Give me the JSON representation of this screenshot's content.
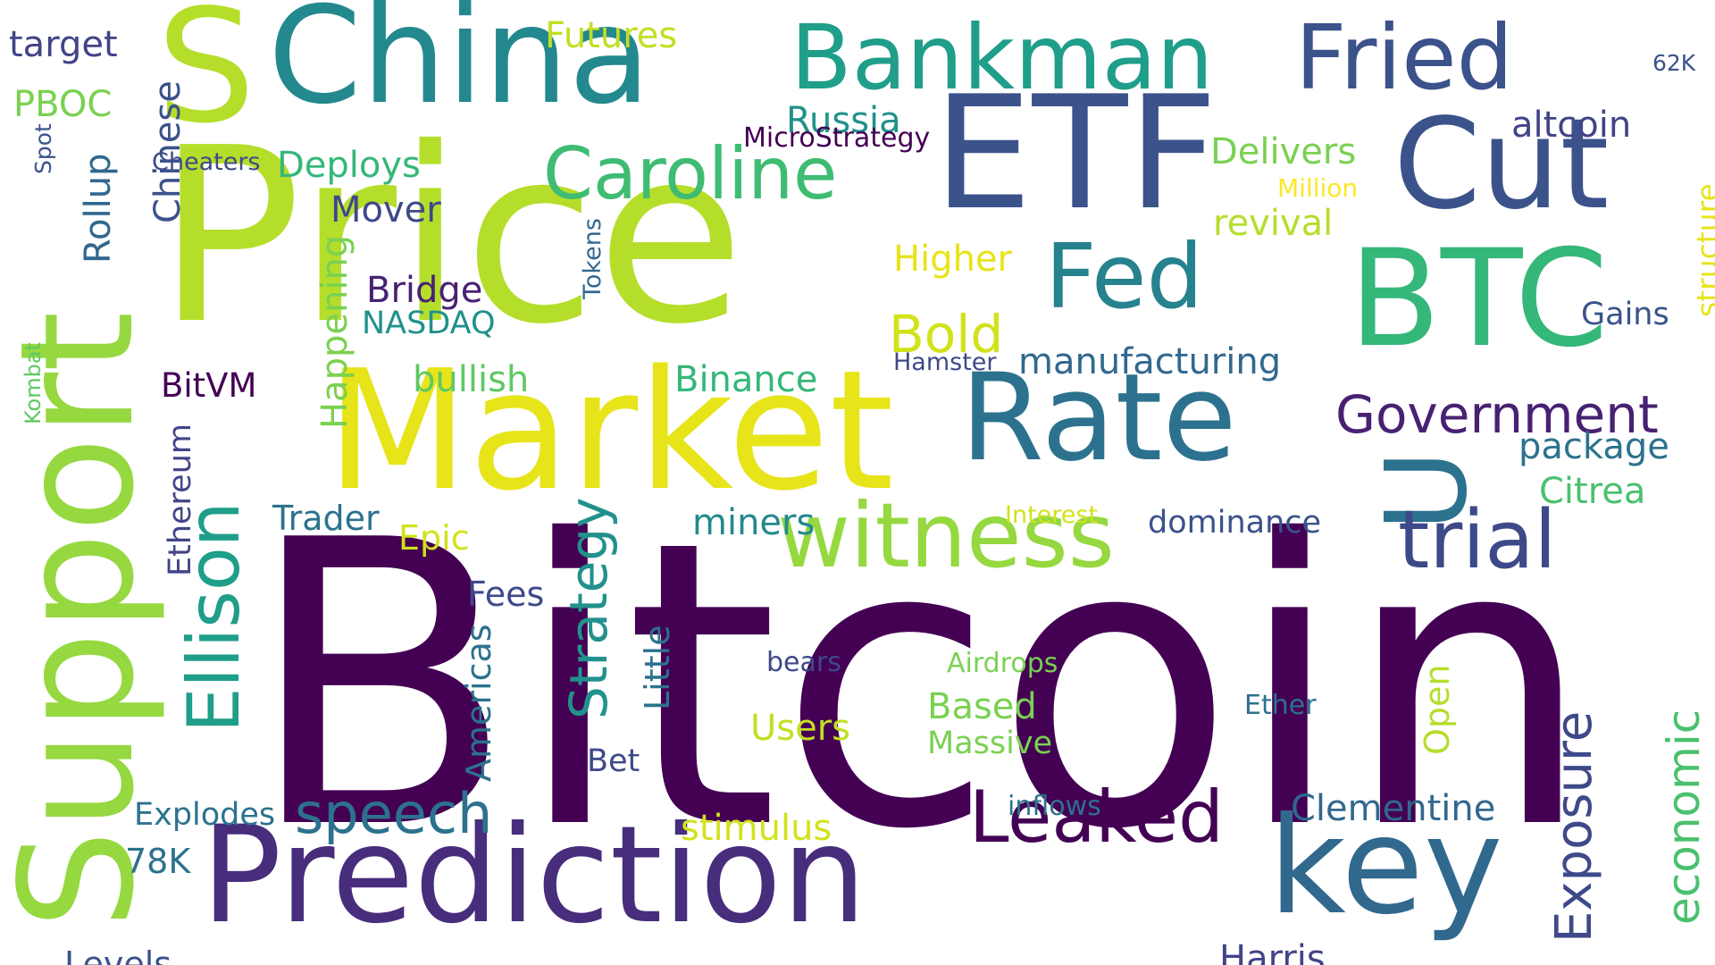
{
  "words": [
    {
      "text": "Bitcoin",
      "color": "#440154"
    },
    {
      "text": "Price",
      "color": "#b5de2b"
    },
    {
      "text": "Market",
      "color": "#e7e419"
    },
    {
      "text": "Prediction",
      "color": "#472d7b"
    },
    {
      "text": "China",
      "color": "#23898e"
    },
    {
      "text": "ETF",
      "color": "#3b528b"
    },
    {
      "text": "Support",
      "color": "#95d840"
    },
    {
      "text": "S",
      "color": "#b5de2b"
    },
    {
      "text": "BTC",
      "color": "#35b779"
    },
    {
      "text": "Rate",
      "color": "#2c728e"
    },
    {
      "text": "Cut",
      "color": "#3b528b"
    },
    {
      "text": "key",
      "color": "#31688e"
    },
    {
      "text": "U",
      "color": "#2c728e"
    },
    {
      "text": "Fried",
      "color": "#3b528b"
    },
    {
      "text": "Bankman",
      "color": "#1f9e89"
    },
    {
      "text": "witness",
      "color": "#95d840"
    },
    {
      "text": "trial",
      "color": "#3e4989"
    },
    {
      "text": "Fed",
      "color": "#26828e"
    },
    {
      "text": "Caroline",
      "color": "#3fbc73"
    },
    {
      "text": "Leaked",
      "color": "#440154"
    },
    {
      "text": "Ellison",
      "color": "#1f9e89"
    },
    {
      "text": "speech",
      "color": "#2c728e"
    },
    {
      "text": "Government",
      "color": "#482173"
    },
    {
      "text": "Strategy",
      "color": "#21918c"
    },
    {
      "text": "Exposure",
      "color": "#3e4989"
    },
    {
      "text": "economic",
      "color": "#4ac16d"
    },
    {
      "text": "Bold",
      "color": "#d2e21b"
    },
    {
      "text": "manufacturing",
      "color": "#31688e"
    },
    {
      "text": "Clementine",
      "color": "#31688e"
    },
    {
      "text": "Higher",
      "color": "#e7e419"
    },
    {
      "text": "package",
      "color": "#2c728e"
    },
    {
      "text": "Citrea",
      "color": "#4ac16d"
    },
    {
      "text": "structure",
      "color": "#e7e419"
    },
    {
      "text": "Binance",
      "color": "#35b779"
    },
    {
      "text": "Bridge",
      "color": "#482173"
    },
    {
      "text": "bullish",
      "color": "#5ec962"
    },
    {
      "text": "Deploys",
      "color": "#35b779"
    },
    {
      "text": "Russia",
      "color": "#21918c"
    },
    {
      "text": "Futures",
      "color": "#c2df23"
    },
    {
      "text": "Delivers",
      "color": "#7ad151"
    },
    {
      "text": "revival",
      "color": "#b5de2b"
    },
    {
      "text": "altcoin",
      "color": "#414487"
    },
    {
      "text": "Mover",
      "color": "#3e4989"
    },
    {
      "text": "Happening",
      "color": "#7ad151"
    },
    {
      "text": "Chinese",
      "color": "#3b528b"
    },
    {
      "text": "target",
      "color": "#414487"
    },
    {
      "text": "PBOC",
      "color": "#7ad151"
    },
    {
      "text": "Rollup",
      "color": "#31688e"
    },
    {
      "text": "Spot",
      "color": "#3b528b"
    },
    {
      "text": "Cheaters",
      "color": "#3e4989"
    },
    {
      "text": "MicroStrategy",
      "color": "#440154"
    },
    {
      "text": "Million",
      "color": "#fde725"
    },
    {
      "text": "Tokens",
      "color": "#31688e"
    },
    {
      "text": "NASDAQ",
      "color": "#21918c"
    },
    {
      "text": "BitVM",
      "color": "#440154"
    },
    {
      "text": "Hamster",
      "color": "#3e4989"
    },
    {
      "text": "Gains",
      "color": "#3b528b"
    },
    {
      "text": "62K",
      "color": "#3b528b"
    },
    {
      "text": "Kombat",
      "color": "#5ec962"
    },
    {
      "text": "Ethereum",
      "color": "#414487"
    },
    {
      "text": "Trader",
      "color": "#2c728e"
    },
    {
      "text": "Epic",
      "color": "#d2e21b"
    },
    {
      "text": "miners",
      "color": "#23898e"
    },
    {
      "text": "Interest",
      "color": "#d2e21b"
    },
    {
      "text": "dominance",
      "color": "#3b528b"
    },
    {
      "text": "Fees",
      "color": "#3e4989"
    },
    {
      "text": "Little",
      "color": "#2c728e"
    },
    {
      "text": "Americas",
      "color": "#2c728e"
    },
    {
      "text": "bears",
      "color": "#3e4989"
    },
    {
      "text": "Airdrops",
      "color": "#7ad151"
    },
    {
      "text": "Based",
      "color": "#7ad151"
    },
    {
      "text": "Open",
      "color": "#b5de2b"
    },
    {
      "text": "Ether",
      "color": "#2c728e"
    },
    {
      "text": "Users",
      "color": "#c2df23"
    },
    {
      "text": "Massive",
      "color": "#7ad151"
    },
    {
      "text": "Bet",
      "color": "#3e4989"
    },
    {
      "text": "Explodes",
      "color": "#2c728e"
    },
    {
      "text": "inflows",
      "color": "#2c728e"
    },
    {
      "text": "stimulus",
      "color": "#d2e21b"
    },
    {
      "text": "78K",
      "color": "#2c728e"
    },
    {
      "text": "Levels",
      "color": "#3b528b"
    },
    {
      "text": "Harris",
      "color": "#414487"
    }
  ]
}
